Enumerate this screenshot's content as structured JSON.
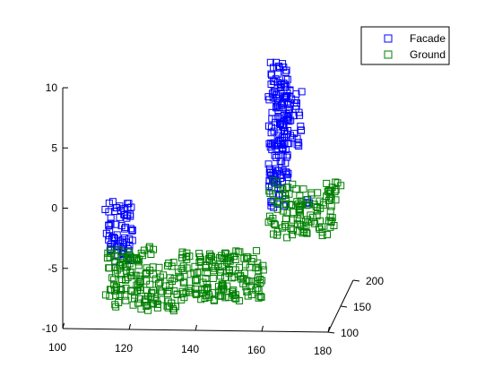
{
  "chart_data": {
    "type": "scatter",
    "projection": "3d",
    "title": "",
    "xlabel": "",
    "ylabel": "",
    "zlabel": "",
    "grid": false,
    "marker": "square",
    "x_axis": {
      "ticks": [
        100,
        120,
        140,
        160,
        180
      ],
      "range": [
        100,
        180
      ]
    },
    "y_axis": {
      "ticks": [
        100,
        150,
        200
      ],
      "range": [
        100,
        200
      ]
    },
    "z_axis": {
      "ticks": [
        -10,
        -5,
        0,
        5,
        10
      ],
      "range": [
        -10,
        10
      ]
    },
    "legend": {
      "placement": "top-right",
      "entries": [
        "Facade",
        "Ground"
      ]
    },
    "series": [
      {
        "name": "Facade",
        "color": "#0000ff",
        "clusters": [
          {
            "x": [
              112,
              120
            ],
            "y": [
              110,
              116
            ],
            "z": [
              -5,
              0
            ],
            "density": 70
          },
          {
            "x": [
              158,
              164
            ],
            "y": [
              150,
              160
            ],
            "z": [
              -2,
              10
            ],
            "density": 140
          },
          {
            "x": [
              160,
              168
            ],
            "y": [
              150,
              160
            ],
            "z": [
              3,
              8
            ],
            "density": 50
          },
          {
            "x": [
              170,
              172
            ],
            "y": [
              140,
              142
            ],
            "z": [
              -1.2,
              -0.6
            ],
            "density": 4
          }
        ]
      },
      {
        "name": "Ground",
        "color": "#008000",
        "clusters": [
          {
            "x": [
              112,
              126
            ],
            "y": [
              110,
              130
            ],
            "z": [
              -9,
              -4.3
            ],
            "density": 120
          },
          {
            "x": [
              126,
              134
            ],
            "y": [
              108,
              120
            ],
            "z": [
              -9,
              -5
            ],
            "density": 40
          },
          {
            "x": [
              134,
              160
            ],
            "y": [
              105,
              120
            ],
            "z": [
              -8,
              -4
            ],
            "density": 170
          },
          {
            "x": [
              158,
              178
            ],
            "y": [
              140,
              160
            ],
            "z": [
              -4,
              0
            ],
            "density": 110
          },
          {
            "x": [
              175,
              180
            ],
            "y": [
              150,
              160
            ],
            "z": [
              -1.6,
              0
            ],
            "density": 12
          }
        ]
      }
    ]
  }
}
